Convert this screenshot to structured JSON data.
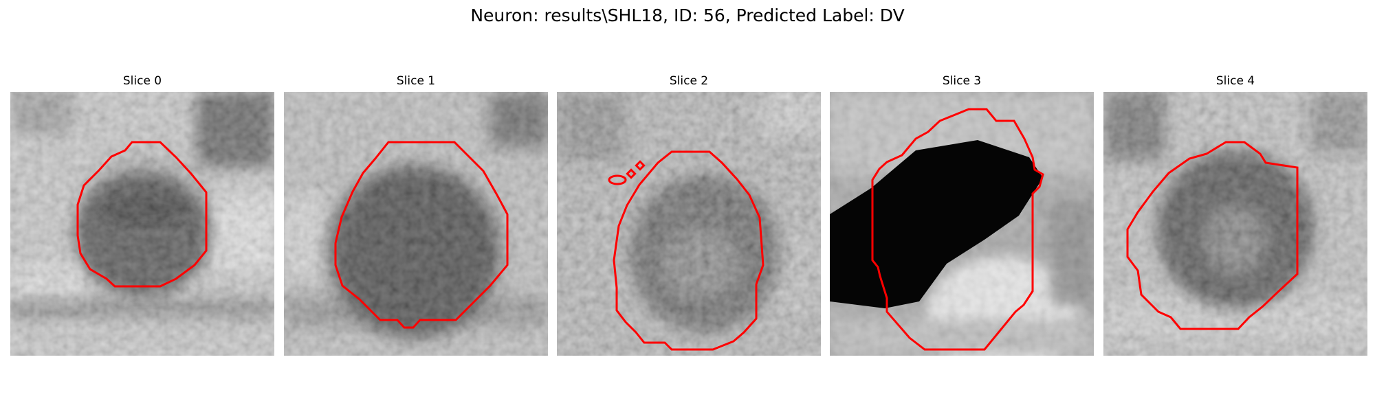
{
  "figure": {
    "title": "Neuron: results\\SHL18, ID: 56, Predicted Label: DV"
  },
  "contour_color": "#ff0000",
  "panels": [
    {
      "title": "Slice 0"
    },
    {
      "title": "Slice 1"
    },
    {
      "title": "Slice 2"
    },
    {
      "title": "Slice 3"
    },
    {
      "title": "Slice 4"
    }
  ]
}
